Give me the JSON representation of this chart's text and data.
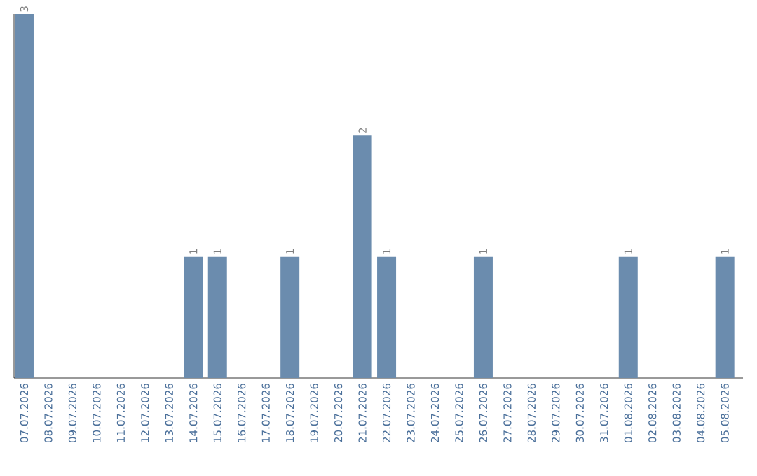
{
  "chart_data": {
    "type": "bar",
    "categories": [
      "07.07.2026",
      "08.07.2026",
      "09.07.2026",
      "10.07.2026",
      "11.07.2026",
      "12.07.2026",
      "13.07.2026",
      "14.07.2026",
      "15.07.2026",
      "16.07.2026",
      "17.07.2026",
      "18.07.2026",
      "19.07.2026",
      "20.07.2026",
      "21.07.2026",
      "22.07.2026",
      "23.07.2026",
      "24.07.2026",
      "25.07.2026",
      "26.07.2026",
      "27.07.2026",
      "28.07.2026",
      "29.07.2026",
      "30.07.2026",
      "31.07.2026",
      "01.08.2026",
      "02.08.2026",
      "03.08.2026",
      "04.08.2026",
      "05.08.2026"
    ],
    "values": [
      3,
      0,
      0,
      0,
      0,
      0,
      0,
      1,
      1,
      0,
      0,
      1,
      0,
      0,
      2,
      1,
      0,
      0,
      0,
      1,
      0,
      0,
      0,
      0,
      0,
      1,
      0,
      0,
      0,
      1
    ],
    "value_labels": [
      "3",
      null,
      null,
      null,
      null,
      null,
      null,
      "1",
      "1",
      null,
      null,
      "1",
      null,
      null,
      "2",
      "1",
      null,
      null,
      null,
      "1",
      null,
      null,
      null,
      null,
      null,
      "1",
      null,
      null,
      null,
      "1"
    ],
    "color": "#6b8cae",
    "tick_labels": "x"
  }
}
